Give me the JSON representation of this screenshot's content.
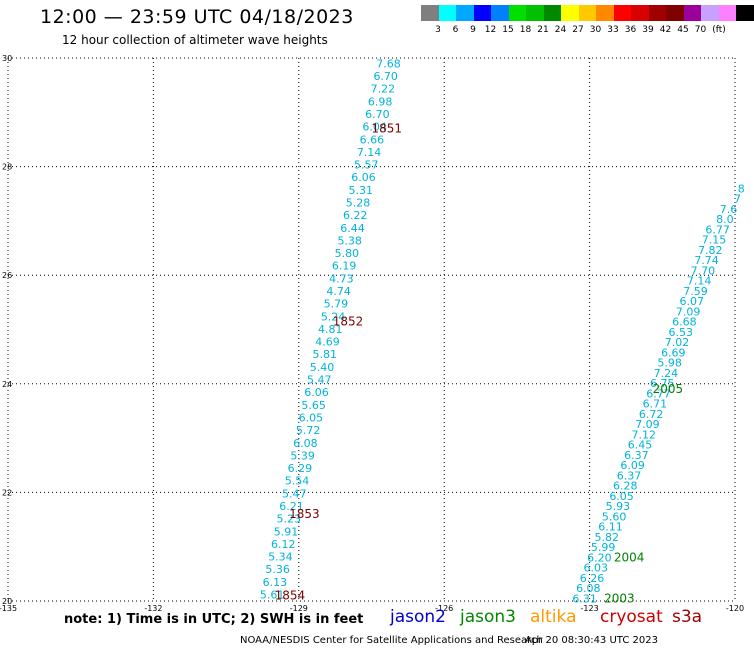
{
  "title": "12:00 — 23:59 UTC 04/18/2023",
  "subtitle": "12 hour collection of altimeter wave heights",
  "legend": {
    "colors": [
      "#7f7f7f",
      "#00ffff",
      "#00a8ff",
      "#0000ff",
      "#0080ff",
      "#00e000",
      "#00c000",
      "#008800",
      "#ffff00",
      "#ffc800",
      "#ff8800",
      "#ff0000",
      "#d80000",
      "#a00000",
      "#800000",
      "#9b009b",
      "#c8a0ff",
      "#ff80ff",
      "#000000"
    ],
    "labels": [
      "3",
      "6",
      "9",
      "12",
      "15",
      "18",
      "21",
      "24",
      "27",
      "30",
      "33",
      "36",
      "39",
      "42",
      "45",
      "70"
    ],
    "unit": "(ft)"
  },
  "map": {
    "lon_min": -135,
    "lon_max": -120,
    "lat_min": 20,
    "lat_max": 30,
    "lon_ticks": [
      "-135",
      "-132",
      "-129",
      "-126",
      "-123",
      "-120"
    ],
    "lat_ticks": [
      "30",
      "28",
      "26",
      "24",
      "22",
      "20"
    ],
    "track_color": "#00b4d8",
    "time_color": "#800000",
    "time_color_alt": "#008000"
  },
  "track1": {
    "heights": [
      "7.68",
      "6.70",
      "7.22",
      "6.98",
      "6.70",
      "6.04",
      "6.66",
      "7.14",
      "5.57",
      "6.06",
      "5.31",
      "5.28",
      "6.22",
      "6.44",
      "5.38",
      "5.80",
      "6.19",
      "4.73",
      "4.74",
      "5.79",
      "5.24",
      "4.81",
      "4.69",
      "5.81",
      "5.40",
      "5.47",
      "6.06",
      "5.65",
      "6.05",
      "5.72",
      "6.08",
      "5.39",
      "6.29",
      "5.54",
      "5.47",
      "6.21",
      "5.23",
      "5.91",
      "6.12",
      "5.34",
      "5.36",
      "6.13",
      "5.61"
    ],
    "times": [
      {
        "label": "1851",
        "lon": -127.5,
        "lat": 28.7
      },
      {
        "label": "1852",
        "lon": -128.3,
        "lat": 25.15
      },
      {
        "label": "1853",
        "lon": -129.2,
        "lat": 21.6
      },
      {
        "label": "1854",
        "lon": -129.5,
        "lat": 20.1
      }
    ]
  },
  "track2": {
    "heights": [
      "8",
      "7",
      "7.6",
      "8.0",
      "6.77",
      "7.15",
      "7.82",
      "7.74",
      "7.70",
      "7.14",
      "7.59",
      "6.07",
      "7.09",
      "6.68",
      "6.53",
      "7.02",
      "6.69",
      "5.98",
      "7.24",
      "6.75",
      "6.77",
      "6.71",
      "6.72",
      "7.09",
      "7.12",
      "6.45",
      "6.37",
      "6.09",
      "6.37",
      "6.28",
      "6.05",
      "5.93",
      "5.60",
      "6.11",
      "5.82",
      "5.99",
      "6.20",
      "6.03",
      "6.26",
      "6.08",
      "6.31"
    ],
    "times": [
      {
        "label": "2005",
        "lon": -121.7,
        "lat": 23.9
      },
      {
        "label": "2004",
        "lon": -122.5,
        "lat": 20.8
      },
      {
        "label": "2003",
        "lon": -122.7,
        "lat": 20.05
      }
    ]
  },
  "footer": {
    "note": "note: 1) Time is in UTC; 2) SWH is in feet",
    "satellites": [
      {
        "name": "jason2",
        "color": "#0000cc"
      },
      {
        "name": "jason3",
        "color": "#008800"
      },
      {
        "name": "altika",
        "color": "#ff9900"
      },
      {
        "name": "cryosat",
        "color": "#cc0000"
      },
      {
        "name": "s3a",
        "color": "#990000"
      }
    ],
    "credit": "NOAA/NESDIS Center for Satellite Applications and Research",
    "timestamp": "Apr 20 08:30:43 UTC 2023"
  }
}
